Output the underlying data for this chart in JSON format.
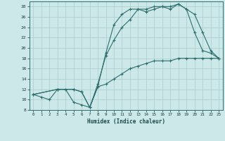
{
  "xlabel": "Humidex (Indice chaleur)",
  "bg_color": "#cce8e8",
  "line_color": "#2d6e6e",
  "grid_color": "#aacccc",
  "xlim": [
    -0.5,
    23.5
  ],
  "ylim": [
    8,
    29
  ],
  "xticks": [
    0,
    1,
    2,
    3,
    4,
    5,
    6,
    7,
    8,
    9,
    10,
    11,
    12,
    13,
    14,
    15,
    16,
    17,
    18,
    19,
    20,
    21,
    22,
    23
  ],
  "yticks": [
    8,
    10,
    12,
    14,
    16,
    18,
    20,
    22,
    24,
    26,
    28
  ],
  "line1_x": [
    0,
    1,
    2,
    3,
    4,
    5,
    6,
    7,
    8,
    9,
    10,
    11,
    12,
    13,
    14,
    15,
    16,
    17,
    18,
    19,
    20,
    21,
    22,
    23
  ],
  "line1_y": [
    11,
    10.5,
    10,
    12,
    12,
    9.5,
    9,
    8.5,
    13,
    18.5,
    21.5,
    24,
    25.5,
    27.5,
    27,
    27.5,
    28,
    28,
    28.5,
    27.5,
    23,
    19.5,
    19,
    18
  ],
  "line2_x": [
    0,
    3,
    5,
    6,
    7,
    8,
    9,
    10,
    11,
    12,
    13,
    14,
    15,
    16,
    17,
    18,
    19,
    20,
    21,
    22,
    23
  ],
  "line2_y": [
    11,
    12,
    12,
    11.5,
    8.5,
    12.5,
    19,
    24.5,
    26.5,
    27.5,
    27.5,
    27.5,
    28,
    28,
    27.5,
    28.5,
    27.5,
    26.5,
    23,
    19.5,
    18
  ],
  "line3_x": [
    0,
    3,
    5,
    6,
    7,
    8,
    9,
    10,
    11,
    12,
    13,
    14,
    15,
    16,
    17,
    18,
    19,
    20,
    21,
    22,
    23
  ],
  "line3_y": [
    11,
    12,
    12,
    11.5,
    8.5,
    12.5,
    13,
    14,
    15,
    16,
    16.5,
    17,
    17.5,
    17.5,
    17.5,
    18,
    18,
    18,
    18,
    18,
    18
  ]
}
